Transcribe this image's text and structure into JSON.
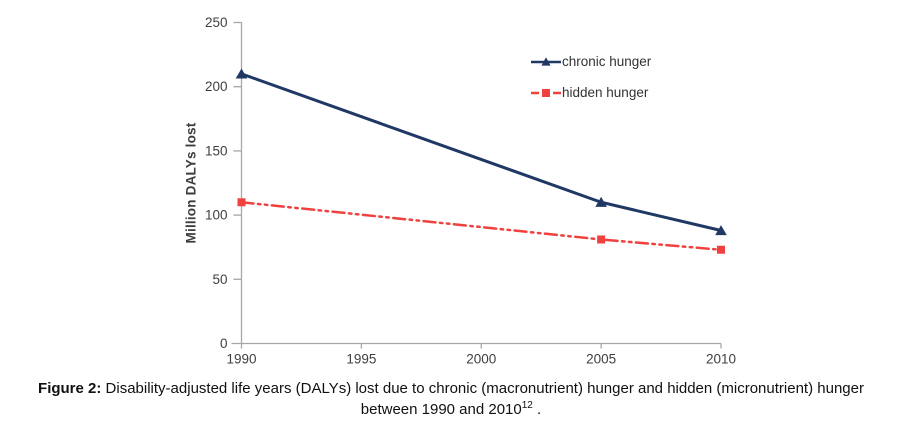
{
  "chart_data": {
    "type": "line",
    "title": "",
    "xlabel": "",
    "ylabel": "Million DALYs lost",
    "x": [
      1990,
      2005,
      2010
    ],
    "series": [
      {
        "name": "chronic hunger",
        "values": [
          210,
          110,
          88
        ],
        "color": "#1f3864",
        "marker": "triangle",
        "line_style": "solid"
      },
      {
        "name": "hidden hunger",
        "values": [
          110,
          81,
          73
        ],
        "color": "#f0413f",
        "marker": "square",
        "line_style": "dash-dot-dot"
      }
    ],
    "xlim": [
      1990,
      2010
    ],
    "ylim": [
      0,
      250
    ],
    "x_ticks": [
      1990,
      1995,
      2000,
      2005,
      2010
    ],
    "y_ticks": [
      0,
      50,
      100,
      150,
      200,
      250
    ],
    "grid": false,
    "legend_position": "inside-upper-right",
    "axis_color": "#a6a6a6",
    "tick_label_color": "#3f3f3f"
  },
  "caption": {
    "label_bold": "Figure 2:",
    "text": "Disability-adjusted life years (DALYs) lost due to chronic (macronutrient) hunger and hidden (micronutrient) hunger between 1990 and 2010",
    "superscript": "12",
    "suffix": " ."
  }
}
